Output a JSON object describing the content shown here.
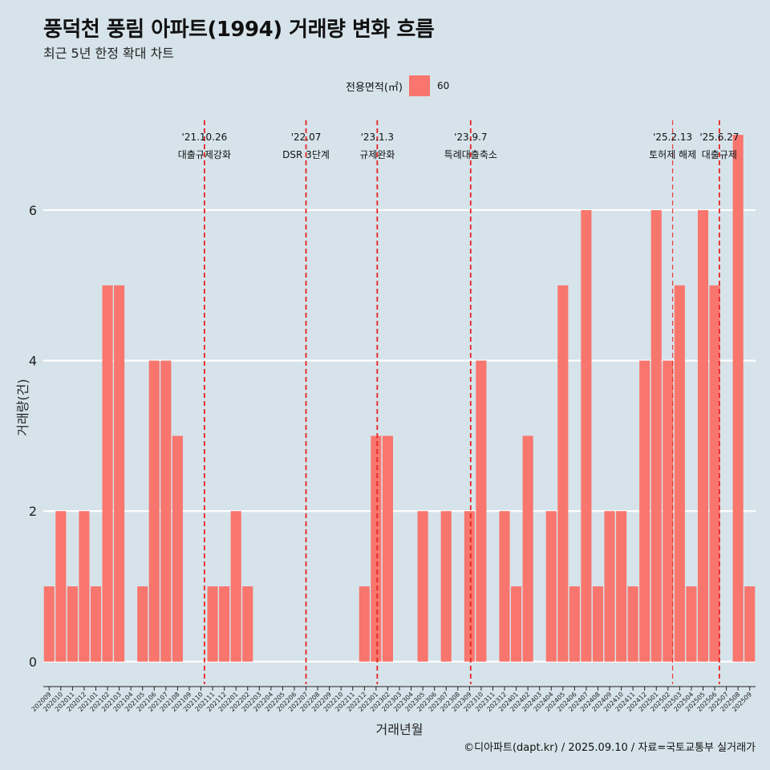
{
  "header": {
    "title": "풍덕천 풍림 아파트(1994) 거래량 변화 흐름",
    "subtitle": "최근 5년 한정 확대 차트"
  },
  "legend": {
    "title": "전용면적(㎡)",
    "label": "60",
    "color": "#f8766d"
  },
  "caption": "©디아파트(dapt.kr) / 2025.09.10 / 자료=국토교통부 실거래가",
  "chart_data": {
    "type": "bar",
    "xlabel": "거래년월",
    "ylabel": "거래량(건)",
    "ylim": [
      -0.3,
      7.3
    ],
    "yticks": [
      0,
      2,
      4,
      6
    ],
    "grid": true,
    "legend_position": "top",
    "bar_color": "#f8766d",
    "categories": [
      "202009",
      "202010",
      "202011",
      "202012",
      "202101",
      "202102",
      "202103",
      "202104",
      "202105",
      "202106",
      "202107",
      "202108",
      "202109",
      "202110",
      "202111",
      "202112",
      "202201",
      "202202",
      "202203",
      "202204",
      "202205",
      "202206",
      "202207",
      "202208",
      "202209",
      "202210",
      "202211",
      "202212",
      "202301",
      "202302",
      "202303",
      "202304",
      "202305",
      "202306",
      "202307",
      "202308",
      "202309",
      "202310",
      "202311",
      "202312",
      "202401",
      "202402",
      "202403",
      "202404",
      "202405",
      "202406",
      "202407",
      "202408",
      "202409",
      "202410",
      "202411",
      "202412",
      "202501",
      "202502",
      "202503",
      "202504",
      "202505",
      "202506",
      "202507",
      "202508",
      "202509"
    ],
    "series": [
      {
        "name": "60",
        "values": [
          1,
          2,
          1,
          2,
          1,
          5,
          5,
          0,
          1,
          4,
          4,
          3,
          0,
          0,
          1,
          1,
          2,
          1,
          0,
          0,
          0,
          0,
          0,
          0,
          0,
          0,
          0,
          1,
          3,
          3,
          0,
          0,
          2,
          0,
          2,
          0,
          2,
          4,
          0,
          2,
          1,
          3,
          0,
          2,
          5,
          1,
          6,
          1,
          2,
          2,
          1,
          4,
          6,
          4,
          5,
          1,
          6,
          5,
          0,
          7,
          1
        ]
      }
    ],
    "events": [
      {
        "date": "'21.10.26",
        "label": "대출규제강화",
        "index": 13.3,
        "style": "bold"
      },
      {
        "date": "'22.07",
        "label": "DSR 3단계",
        "index": 22.0,
        "style": "bold"
      },
      {
        "date": "'23.1.3",
        "label": "규제완화",
        "index": 28.1,
        "style": "bold"
      },
      {
        "date": "'23.9.7",
        "label": "특례대출축소",
        "index": 36.1,
        "style": "bold"
      },
      {
        "date": "'25.2.13",
        "label": "토허제 해제",
        "index": 53.4,
        "style": "thin"
      },
      {
        "date": "'25.6.27",
        "label": "대출규제",
        "index": 57.4,
        "style": "bold"
      }
    ]
  }
}
